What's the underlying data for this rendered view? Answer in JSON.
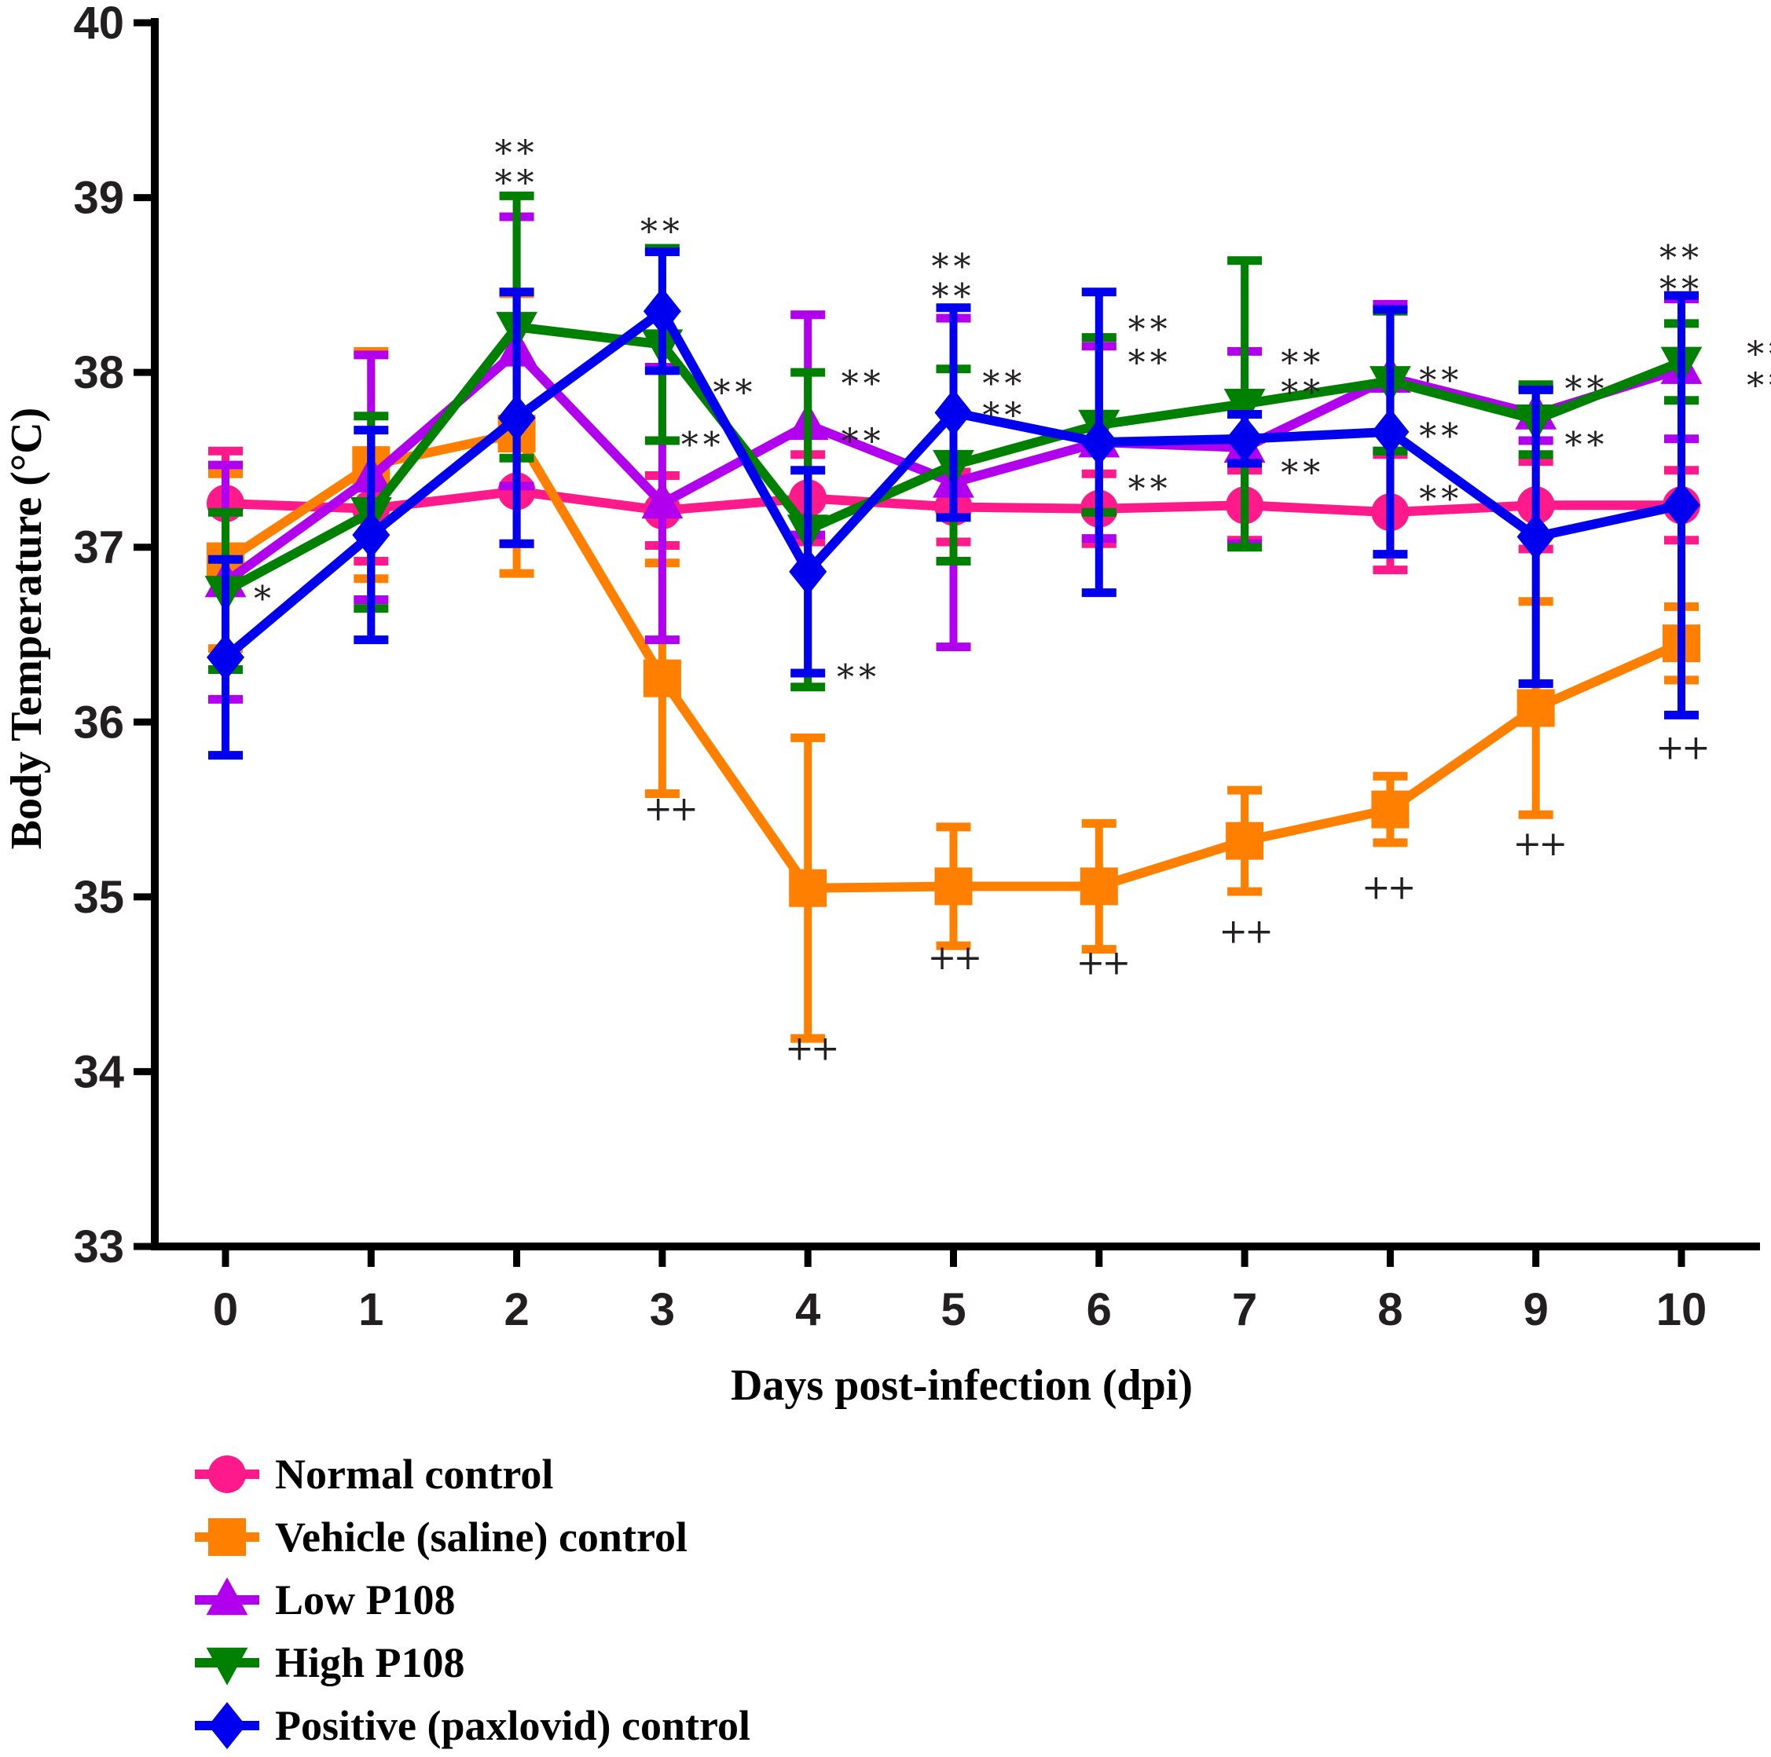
{
  "chart_data": {
    "type": "line",
    "xlabel": "Days post-infection (dpi)",
    "ylabel": "Body Temperature (°C)",
    "xlim": [
      0,
      10
    ],
    "ylim": [
      33,
      40
    ],
    "x": [
      0,
      1,
      2,
      3,
      4,
      5,
      6,
      7,
      8,
      9,
      10
    ],
    "yticks": [
      "33",
      "34",
      "35",
      "36",
      "37",
      "38",
      "39",
      "40"
    ],
    "xticks": [
      "0",
      "1",
      "2",
      "3",
      "4",
      "5",
      "6",
      "7",
      "8",
      "9",
      "10"
    ],
    "legend_position": "bottom-left",
    "series": [
      {
        "name": "Normal control",
        "color": "#ff1a8c",
        "marker": "circle",
        "values": [
          37.25,
          37.22,
          37.32,
          37.21,
          37.28,
          37.23,
          37.22,
          37.24,
          37.2,
          37.24,
          37.24
        ],
        "errors": [
          0.3,
          0.3,
          0.3,
          0.2,
          0.25,
          0.2,
          0.2,
          0.2,
          0.33,
          0.25,
          0.2
        ]
      },
      {
        "name": "Vehicle (saline) control",
        "color": "#ff8000",
        "marker": "square",
        "values": [
          36.92,
          37.47,
          37.65,
          36.25,
          35.05,
          35.06,
          35.06,
          35.32,
          35.5,
          36.08,
          36.45
        ],
        "errors": [
          0.5,
          0.65,
          0.8,
          0.66,
          0.86,
          0.34,
          0.36,
          0.29,
          0.19,
          0.61,
          0.21
        ]
      },
      {
        "name": "Low P108",
        "color": "#b000ee",
        "marker": "triangle-up",
        "values": [
          36.8,
          37.4,
          38.12,
          37.25,
          37.7,
          37.37,
          37.6,
          37.57,
          37.97,
          37.76,
          38.02
        ],
        "errors": [
          0.67,
          0.7,
          0.77,
          0.78,
          0.63,
          0.94,
          0.55,
          0.55,
          0.42,
          0.15,
          0.4
        ]
      },
      {
        "name": "High P108",
        "color": "#008000",
        "marker": "triangle-down",
        "values": [
          36.75,
          37.2,
          38.26,
          38.16,
          37.1,
          37.47,
          37.7,
          37.82,
          37.95,
          37.73,
          38.06
        ],
        "errors": [
          0.45,
          0.55,
          0.75,
          0.55,
          0.9,
          0.55,
          0.5,
          0.82,
          0.4,
          0.2,
          0.22
        ]
      },
      {
        "name": "Positive (paxlovid) control",
        "color": "#0000ee",
        "marker": "diamond",
        "values": [
          36.37,
          37.07,
          37.74,
          38.35,
          36.86,
          37.77,
          37.6,
          37.62,
          37.66,
          37.06,
          37.24
        ],
        "errors": [
          0.56,
          0.6,
          0.72,
          0.34,
          0.58,
          0.6,
          0.86,
          0.14,
          0.7,
          0.84,
          1.2
        ]
      }
    ],
    "annotations": [
      {
        "text": "*",
        "x": 0.27,
        "y": 36.7
      },
      {
        "text": "**",
        "x": 2,
        "y": 39.25
      },
      {
        "text": "**",
        "x": 2,
        "y": 39.08
      },
      {
        "text": "**",
        "x": 3,
        "y": 38.8
      },
      {
        "text": "**",
        "x": 3.5,
        "y": 37.88
      },
      {
        "text": "**",
        "x": 3.28,
        "y": 37.58
      },
      {
        "text": "**",
        "x": 4.38,
        "y": 37.93
      },
      {
        "text": "**",
        "x": 4.38,
        "y": 37.6
      },
      {
        "text": "**",
        "x": 4.35,
        "y": 36.25
      },
      {
        "text": "**",
        "x": 5,
        "y": 38.6
      },
      {
        "text": "**",
        "x": 5,
        "y": 38.43
      },
      {
        "text": "**",
        "x": 5.35,
        "y": 37.93
      },
      {
        "text": "**",
        "x": 5.35,
        "y": 37.75
      },
      {
        "text": "**",
        "x": 6.35,
        "y": 38.24
      },
      {
        "text": "**",
        "x": 6.35,
        "y": 38.05
      },
      {
        "text": "**",
        "x": 6.35,
        "y": 37.33
      },
      {
        "text": "**",
        "x": 7.4,
        "y": 38.05
      },
      {
        "text": "**",
        "x": 7.4,
        "y": 37.88
      },
      {
        "text": "**",
        "x": 7.4,
        "y": 37.42
      },
      {
        "text": "**",
        "x": 8.35,
        "y": 37.95
      },
      {
        "text": "**",
        "x": 8.35,
        "y": 37.63
      },
      {
        "text": "**",
        "x": 8.35,
        "y": 37.27
      },
      {
        "text": "**",
        "x": 9.35,
        "y": 37.9
      },
      {
        "text": "**",
        "x": 9.35,
        "y": 37.58
      },
      {
        "text": "**",
        "x": 10,
        "y": 38.65
      },
      {
        "text": "**",
        "x": 10,
        "y": 38.47
      },
      {
        "text": "**",
        "x": 10.6,
        "y": 38.1
      },
      {
        "text": "**",
        "x": 10.6,
        "y": 37.92
      },
      {
        "text": "++",
        "x": 3.05,
        "y": 35.5
      },
      {
        "text": "++",
        "x": 4.02,
        "y": 34.13
      },
      {
        "text": "++",
        "x": 5.0,
        "y": 34.65
      },
      {
        "text": "++",
        "x": 6.02,
        "y": 34.62
      },
      {
        "text": "++",
        "x": 7.0,
        "y": 34.8
      },
      {
        "text": "++",
        "x": 7.98,
        "y": 35.05
      },
      {
        "text": "++",
        "x": 9.02,
        "y": 35.3
      },
      {
        "text": "++",
        "x": 10.0,
        "y": 35.85
      }
    ]
  }
}
